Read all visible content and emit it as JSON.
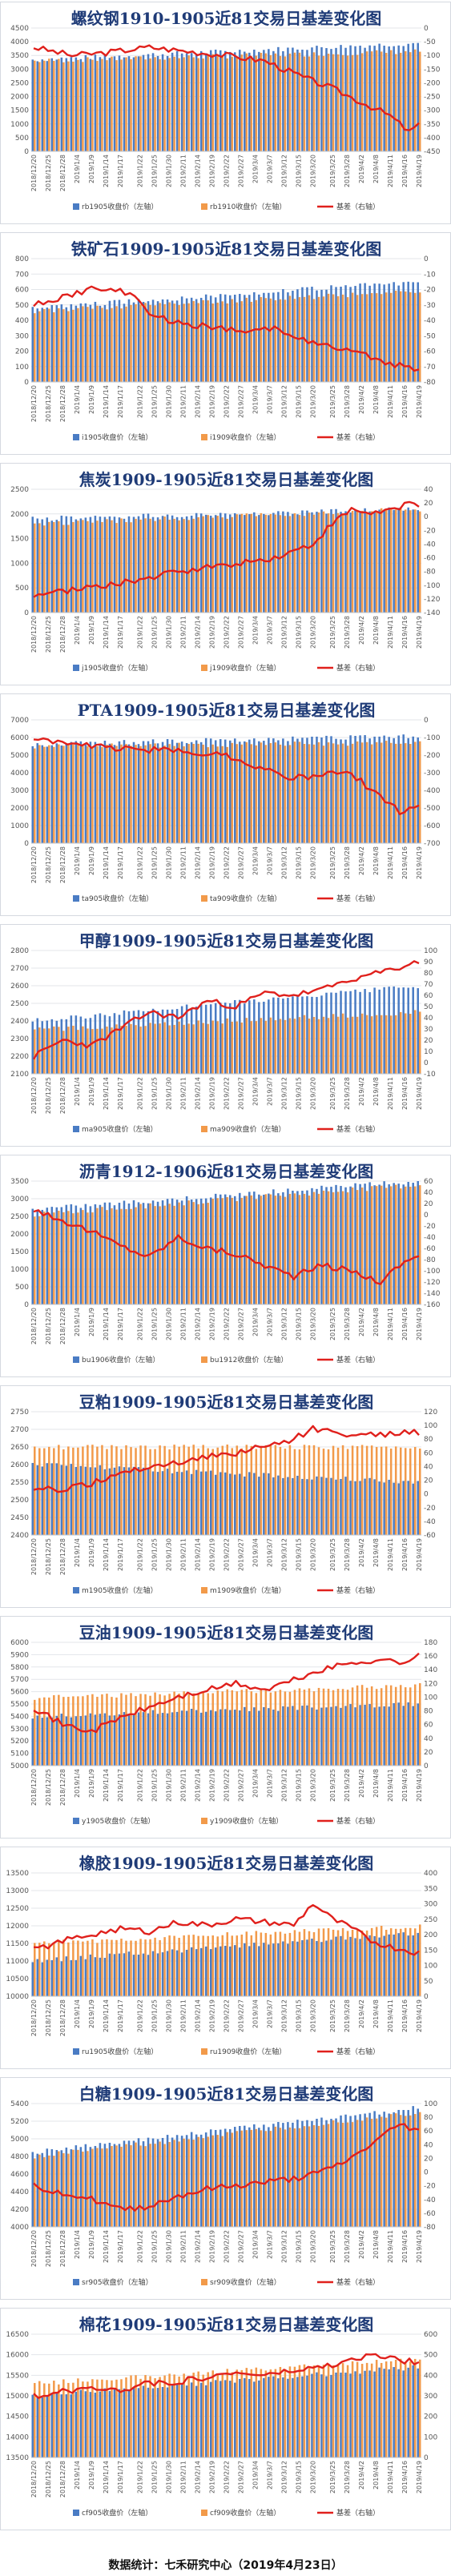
{
  "colors": {
    "bar_near": "#4a7cc4",
    "bar_far": "#f29a4a",
    "basis_line": "#e0201c",
    "grid": "#e3e6ea",
    "axis_text": "#555555",
    "title": "#1f3b77"
  },
  "chart_data": [
    {
      "type": "bar+line",
      "title": "螺纹钢1910-1905近81交易日基差变化图",
      "legend": {
        "near": "rb1905收盘价（左轴）",
        "far": "rb1910收盘价（左轴）",
        "basis": "基差（右轴）"
      },
      "left_axis": {
        "min": 0,
        "max": 4500,
        "step": 500
      },
      "right_axis": {
        "min": -450,
        "max": 0,
        "step": 50
      },
      "near": {
        "start": 3350,
        "end": 3950
      },
      "far": {
        "start": 3300,
        "end": 3650
      },
      "basis_keypoints": [
        [
          0,
          -70
        ],
        [
          8,
          -100
        ],
        [
          15,
          -90
        ],
        [
          24,
          -70
        ],
        [
          32,
          -85
        ],
        [
          40,
          -100
        ],
        [
          48,
          -120
        ],
        [
          56,
          -180
        ],
        [
          62,
          -220
        ],
        [
          68,
          -270
        ],
        [
          74,
          -320
        ],
        [
          78,
          -380
        ],
        [
          80,
          -350
        ]
      ]
    },
    {
      "type": "bar+line",
      "title": "铁矿石1909-1905近81交易日基差变化图",
      "legend": {
        "near": "i1905收盘价（左轴）",
        "far": "i1909收盘价（左轴）",
        "basis": "基差（右轴）"
      },
      "left_axis": {
        "min": 0,
        "max": 800,
        "step": 100
      },
      "right_axis": {
        "min": -80,
        "max": 0,
        "step": 10
      },
      "near": {
        "start": 480,
        "end": 650
      },
      "far": {
        "start": 460,
        "end": 590
      },
      "basis_keypoints": [
        [
          0,
          -30
        ],
        [
          6,
          -25
        ],
        [
          12,
          -20
        ],
        [
          20,
          -22
        ],
        [
          24,
          -35
        ],
        [
          30,
          -42
        ],
        [
          36,
          -44
        ],
        [
          44,
          -48
        ],
        [
          50,
          -45
        ],
        [
          56,
          -52
        ],
        [
          62,
          -58
        ],
        [
          68,
          -62
        ],
        [
          74,
          -68
        ],
        [
          80,
          -72
        ]
      ]
    },
    {
      "type": "bar+line",
      "title": "焦炭1909-1905近81交易日基差变化图",
      "legend": {
        "near": "j1905收盘价（左轴）",
        "far": "j1909收盘价（左轴）",
        "basis": "基差（右轴）"
      },
      "left_axis": {
        "min": 0,
        "max": 2500,
        "step": 500
      },
      "right_axis": {
        "min": -140,
        "max": 40,
        "step": 20
      },
      "near": {
        "start": 1900,
        "end": 2100
      },
      "far": {
        "start": 1800,
        "end": 2100
      },
      "basis_keypoints": [
        [
          0,
          -115
        ],
        [
          10,
          -105
        ],
        [
          20,
          -95
        ],
        [
          30,
          -80
        ],
        [
          40,
          -70
        ],
        [
          50,
          -60
        ],
        [
          58,
          -40
        ],
        [
          62,
          -10
        ],
        [
          66,
          10
        ],
        [
          70,
          5
        ],
        [
          74,
          10
        ],
        [
          78,
          20
        ],
        [
          80,
          15
        ]
      ]
    },
    {
      "type": "bar+line",
      "title": "PTA1909-1905近81交易日基差变化图",
      "legend": {
        "near": "ta905收盘价（左轴）",
        "far": "ta909收盘价（左轴）",
        "basis": "基差（右轴）"
      },
      "left_axis": {
        "min": 0,
        "max": 7000,
        "step": 1000
      },
      "right_axis": {
        "min": -700,
        "max": 0,
        "step": 100
      },
      "near": {
        "start": 5600,
        "end": 6100
      },
      "far": {
        "start": 5500,
        "end": 5700
      },
      "basis_keypoints": [
        [
          0,
          -100
        ],
        [
          8,
          -140
        ],
        [
          16,
          -160
        ],
        [
          24,
          -170
        ],
        [
          32,
          -180
        ],
        [
          40,
          -200
        ],
        [
          46,
          -260
        ],
        [
          52,
          -320
        ],
        [
          58,
          -330
        ],
        [
          64,
          -290
        ],
        [
          68,
          -350
        ],
        [
          72,
          -440
        ],
        [
          76,
          -520
        ],
        [
          80,
          -480
        ]
      ]
    },
    {
      "type": "bar+line",
      "title": "甲醇1909-1905近81交易日基差变化图",
      "legend": {
        "near": "ma905收盘价（左轴）",
        "far": "ma909收盘价（左轴）",
        "basis": "基差（右轴）"
      },
      "left_axis": {
        "min": 2100,
        "max": 2800,
        "step": 100
      },
      "right_axis": {
        "min": -10,
        "max": 100,
        "step": 10
      },
      "near": {
        "start": 2400,
        "end": 2600
      },
      "far": {
        "start": 2350,
        "end": 2450
      },
      "basis_keypoints": [
        [
          0,
          5
        ],
        [
          6,
          20
        ],
        [
          12,
          15
        ],
        [
          18,
          30
        ],
        [
          24,
          45
        ],
        [
          30,
          40
        ],
        [
          36,
          55
        ],
        [
          42,
          50
        ],
        [
          48,
          62
        ],
        [
          54,
          60
        ],
        [
          60,
          65
        ],
        [
          66,
          75
        ],
        [
          72,
          80
        ],
        [
          76,
          85
        ],
        [
          80,
          90
        ]
      ]
    },
    {
      "type": "bar+line",
      "title": "沥青1912-1906近81交易日基差变化图",
      "legend": {
        "near": "bu1906收盘价（左轴）",
        "far": "bu1912收盘价（左轴）",
        "basis": "基差（右轴）"
      },
      "left_axis": {
        "min": 0,
        "max": 3500,
        "step": 500
      },
      "right_axis": {
        "min": -160,
        "max": 60,
        "step": 20
      },
      "near": {
        "start": 2700,
        "end": 3500
      },
      "far": {
        "start": 2550,
        "end": 3400
      },
      "basis_keypoints": [
        [
          0,
          10
        ],
        [
          6,
          -10
        ],
        [
          12,
          -30
        ],
        [
          18,
          -55
        ],
        [
          24,
          -75
        ],
        [
          30,
          -40
        ],
        [
          36,
          -60
        ],
        [
          42,
          -70
        ],
        [
          48,
          -90
        ],
        [
          54,
          -110
        ],
        [
          60,
          -90
        ],
        [
          66,
          -100
        ],
        [
          72,
          -120
        ],
        [
          76,
          -90
        ],
        [
          80,
          -70
        ]
      ]
    },
    {
      "type": "bar+line",
      "title": "豆粕1909-1905近81交易日基差变化图",
      "legend": {
        "near": "m1905收盘价（左轴）",
        "far": "m1909收盘价（左轴）",
        "basis": "基差（右轴）"
      },
      "left_axis": {
        "min": 2400,
        "max": 2750,
        "step": 50
      },
      "right_axis": {
        "min": -60,
        "max": 120,
        "step": 20
      },
      "near": {
        "start": 2600,
        "end": 2550
      },
      "far": {
        "start": 2650,
        "end": 2650
      },
      "basis_keypoints": [
        [
          0,
          10
        ],
        [
          6,
          5
        ],
        [
          12,
          15
        ],
        [
          18,
          30
        ],
        [
          24,
          40
        ],
        [
          30,
          45
        ],
        [
          36,
          55
        ],
        [
          42,
          60
        ],
        [
          48,
          70
        ],
        [
          54,
          80
        ],
        [
          58,
          95
        ],
        [
          62,
          90
        ],
        [
          68,
          85
        ],
        [
          74,
          88
        ],
        [
          80,
          90
        ]
      ]
    },
    {
      "type": "bar+line",
      "title": "豆油1909-1905近81交易日基差变化图",
      "legend": {
        "near": "y1905收盘价（左轴）",
        "far": "y1909收盘价（左轴）",
        "basis": "基差（右轴）"
      },
      "left_axis": {
        "min": 5000,
        "max": 6000,
        "step": 100
      },
      "right_axis": {
        "min": 0,
        "max": 180,
        "step": 20
      },
      "near": {
        "start": 5400,
        "end": 5500
      },
      "far": {
        "start": 5550,
        "end": 5650
      },
      "basis_keypoints": [
        [
          0,
          85
        ],
        [
          6,
          60
        ],
        [
          12,
          50
        ],
        [
          18,
          70
        ],
        [
          24,
          85
        ],
        [
          30,
          100
        ],
        [
          36,
          110
        ],
        [
          42,
          120
        ],
        [
          48,
          110
        ],
        [
          54,
          125
        ],
        [
          60,
          140
        ],
        [
          66,
          150
        ],
        [
          72,
          155
        ],
        [
          76,
          150
        ],
        [
          80,
          160
        ]
      ]
    },
    {
      "type": "bar+line",
      "title": "橡胶1909-1905近81交易日基差变化图",
      "legend": {
        "near": "ru1905收盘价（左轴）",
        "far": "ru1909收盘价（左轴）",
        "basis": "基差（右轴）"
      },
      "left_axis": {
        "min": 10000,
        "max": 13500,
        "step": 500
      },
      "right_axis": {
        "min": 0,
        "max": 400,
        "step": 50
      },
      "near": {
        "start": 11000,
        "end": 11800
      },
      "far": {
        "start": 11500,
        "end": 12000
      },
      "basis_keypoints": [
        [
          0,
          150
        ],
        [
          6,
          180
        ],
        [
          12,
          200
        ],
        [
          18,
          220
        ],
        [
          24,
          210
        ],
        [
          30,
          240
        ],
        [
          36,
          230
        ],
        [
          42,
          250
        ],
        [
          48,
          240
        ],
        [
          54,
          230
        ],
        [
          58,
          300
        ],
        [
          62,
          250
        ],
        [
          66,
          220
        ],
        [
          70,
          180
        ],
        [
          74,
          160
        ],
        [
          80,
          140
        ]
      ]
    },
    {
      "type": "bar+line",
      "title": "白糖1909-1905近81交易日基差变化图",
      "legend": {
        "near": "sr905收盘价（左轴）",
        "far": "sr909收盘价（左轴）",
        "basis": "基差（右轴）"
      },
      "left_axis": {
        "min": 4000,
        "max": 5400,
        "step": 200
      },
      "right_axis": {
        "min": -80,
        "max": 100,
        "step": 20
      },
      "near": {
        "start": 4850,
        "end": 5350
      },
      "far": {
        "start": 4800,
        "end": 5300
      },
      "basis_keypoints": [
        [
          0,
          -20
        ],
        [
          6,
          -30
        ],
        [
          12,
          -40
        ],
        [
          18,
          -55
        ],
        [
          24,
          -50
        ],
        [
          30,
          -35
        ],
        [
          36,
          -25
        ],
        [
          42,
          -20
        ],
        [
          48,
          -15
        ],
        [
          54,
          -10
        ],
        [
          60,
          0
        ],
        [
          66,
          20
        ],
        [
          72,
          50
        ],
        [
          76,
          70
        ],
        [
          80,
          60
        ]
      ]
    },
    {
      "type": "bar+line",
      "title": "棉花1909-1905近81交易日基差变化图",
      "legend": {
        "near": "cf905收盘价（左轴）",
        "far": "cf909收盘价（左轴）",
        "basis": "基差（右轴）"
      },
      "left_axis": {
        "min": 13500,
        "max": 16500,
        "step": 500
      },
      "right_axis": {
        "min": 0,
        "max": 600,
        "step": 100
      },
      "near": {
        "start": 15000,
        "end": 15700
      },
      "far": {
        "start": 15300,
        "end": 15900
      },
      "basis_keypoints": [
        [
          0,
          300
        ],
        [
          6,
          320
        ],
        [
          12,
          340
        ],
        [
          18,
          330
        ],
        [
          24,
          360
        ],
        [
          30,
          370
        ],
        [
          36,
          390
        ],
        [
          42,
          410
        ],
        [
          48,
          400
        ],
        [
          54,
          420
        ],
        [
          60,
          440
        ],
        [
          66,
          470
        ],
        [
          70,
          500
        ],
        [
          74,
          480
        ],
        [
          80,
          460
        ]
      ]
    }
  ],
  "x_dates": [
    "2018/12/20",
    "2018/12/25",
    "2018/12/28",
    "2019/1/4",
    "2019/1/9",
    "2019/1/14",
    "2019/1/17",
    "2019/1/22",
    "2019/1/25",
    "2019/1/30",
    "2019/2/11",
    "2019/2/14",
    "2019/2/19",
    "2019/2/22",
    "2019/2/27",
    "2019/3/4",
    "2019/3/7",
    "2019/3/12",
    "2019/3/15",
    "2019/3/20",
    "2019/3/25",
    "2019/3/28",
    "2019/4/2",
    "2019/4/8",
    "2019/4/11",
    "2019/4/16",
    "2019/4/19"
  ],
  "footer": "数据统计：七禾研究中心（2019年4月23日）"
}
